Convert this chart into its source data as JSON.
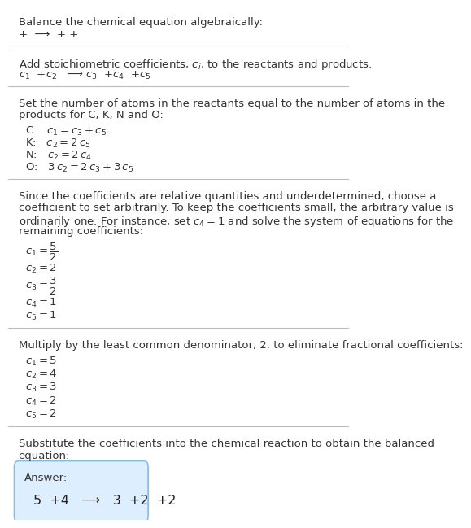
{
  "title": "Balance the chemical equation algebraically:",
  "line1": "+  ⟶  + +",
  "section1_title": "Add stoichiometric coefficients, $c_i$, to the reactants and products:",
  "section1_eq": "$c_1$  +$c_2$   ⟶ $c_3$  +$c_4$  +$c_5$",
  "section2_title_1": "Set the number of atoms in the reactants equal to the number of atoms in the",
  "section2_title_2": "products for C, K, N and O:",
  "section2_lines": [
    "C:   $c_1 = c_3 + c_5$",
    "K:   $c_2 = 2\\,c_5$",
    "N:   $c_2 = 2\\,c_4$",
    "O:   $3\\,c_2 = 2\\,c_3 + 3\\,c_5$"
  ],
  "section3_title_1": "Since the coefficients are relative quantities and underdetermined, choose a",
  "section3_title_2": "coefficient to set arbitrarily. To keep the coefficients small, the arbitrary value is",
  "section3_title_3": "ordinarily one. For instance, set $c_4 = 1$ and solve the system of equations for the",
  "section3_title_4": "remaining coefficients:",
  "section3_lines": [
    "$c_1 = \\dfrac{5}{2}$",
    "$c_2 = 2$",
    "$c_3 = \\dfrac{3}{2}$",
    "$c_4 = 1$",
    "$c_5 = 1$"
  ],
  "section4_title": "Multiply by the least common denominator, 2, to eliminate fractional coefficients:",
  "section4_lines": [
    "$c_1 = 5$",
    "$c_2 = 4$",
    "$c_3 = 3$",
    "$c_4 = 2$",
    "$c_5 = 2$"
  ],
  "section5_title_1": "Substitute the coefficients into the chemical reaction to obtain the balanced",
  "section5_title_2": "equation:",
  "answer_label": "Answer:",
  "answer_eq": "5  +4   ⟶   3  +2  +2",
  "bg_color": "#ffffff",
  "text_color": "#333333",
  "answer_box_facecolor": "#ddeeff",
  "answer_box_edgecolor": "#88bbdd",
  "hr_color": "#bbbbbb"
}
